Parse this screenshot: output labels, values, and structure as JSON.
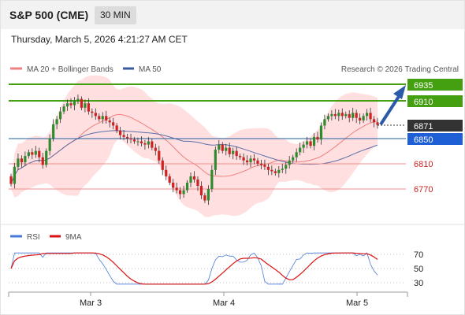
{
  "header": {
    "instrument": "S&P 500 (CME)",
    "timeframe": "30 MIN",
    "datetime": "Thursday, March 5, 2026 4:21:27 AM CET"
  },
  "legend": {
    "ma20": {
      "label": "MA 20 + Bollinger Bands",
      "color": "#f08080"
    },
    "ma50": {
      "label": "MA 50",
      "color": "#3a5aa0"
    },
    "credit": "Research © 2026 Trading Central"
  },
  "price_levels": {
    "r2": {
      "label": "6935",
      "color": "#44a010"
    },
    "r1": {
      "label": "6910",
      "color": "#44a010"
    },
    "last": {
      "label": "6871",
      "color": "#333333"
    },
    "pivot": {
      "label": "6850",
      "color": "#1f5fd6"
    },
    "s1": {
      "label": "6810",
      "color": "#cc2222"
    },
    "s2": {
      "label": "6770",
      "color": "#cc2222"
    }
  },
  "rsi_panel": {
    "rsi_label": "RSI",
    "ma_label": "9MA",
    "rsi_color": "#4a78d8",
    "ma_color": "#dd1111",
    "ticks": [
      "70",
      "50",
      "30"
    ]
  },
  "xaxis": {
    "labels": [
      "Mar 3",
      "Mar 4",
      "Mar 5"
    ]
  },
  "chart_data": {
    "type": "candlestick",
    "closes": [
      6778,
      6805,
      6818,
      6812,
      6822,
      6828,
      6824,
      6830,
      6820,
      6808,
      6830,
      6850,
      6872,
      6880,
      6892,
      6900,
      6905,
      6902,
      6910,
      6912,
      6898,
      6905,
      6892,
      6890,
      6885,
      6880,
      6885,
      6878,
      6875,
      6870,
      6862,
      6855,
      6852,
      6850,
      6848,
      6845,
      6845,
      6842,
      6840,
      6845,
      6835,
      6830,
      6815,
      6800,
      6790,
      6780,
      6772,
      6768,
      6762,
      6768,
      6780,
      6790,
      6785,
      6775,
      6760,
      6752,
      6770,
      6800,
      6832,
      6840,
      6830,
      6835,
      6825,
      6830,
      6822,
      6820,
      6815,
      6812,
      6818,
      6815,
      6810,
      6808,
      6805,
      6800,
      6798,
      6795,
      6800,
      6802,
      6808,
      6815,
      6820,
      6828,
      6835,
      6840,
      6845,
      6838,
      6852,
      6848,
      6870,
      6880,
      6885,
      6888,
      6885,
      6890,
      6885,
      6888,
      6882,
      6890,
      6882,
      6878,
      6885,
      6890,
      6880,
      6875,
      6871
    ]
  }
}
